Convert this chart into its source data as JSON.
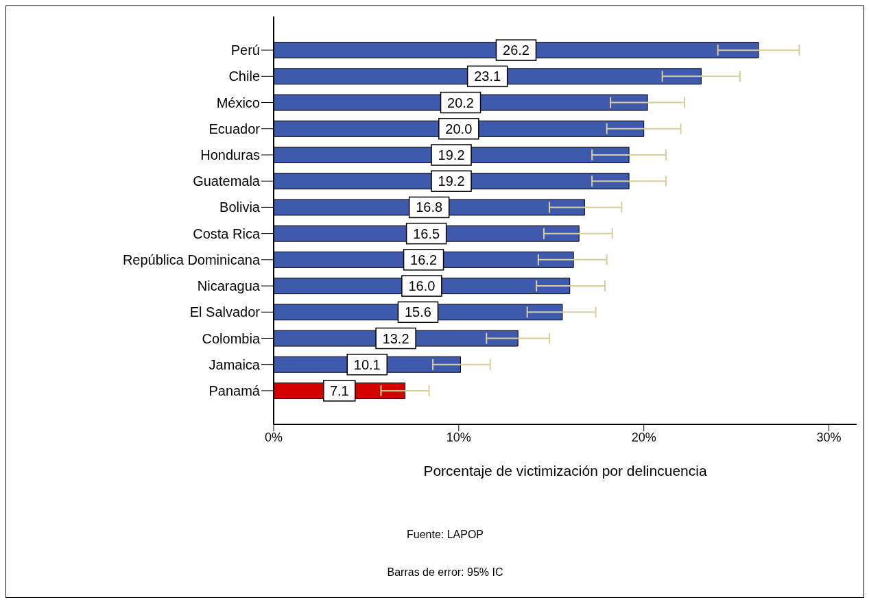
{
  "chart_data": {
    "type": "bar",
    "orientation": "horizontal",
    "categories": [
      "Perú",
      "Chile",
      "México",
      "Ecuador",
      "Honduras",
      "Guatemala",
      "Bolivia",
      "Costa Rica",
      "República Dominicana",
      "Nicaragua",
      "El Salvador",
      "Colombia",
      "Jamaica",
      "Panamá"
    ],
    "values": [
      26.2,
      23.1,
      20.2,
      20.0,
      19.2,
      19.2,
      16.8,
      16.5,
      16.2,
      16.0,
      15.6,
      13.2,
      10.1,
      7.1
    ],
    "errors": [
      [
        24.0,
        28.4
      ],
      [
        21.0,
        25.2
      ],
      [
        18.2,
        22.2
      ],
      [
        18.0,
        22.0
      ],
      [
        17.2,
        21.2
      ],
      [
        17.2,
        21.2
      ],
      [
        14.9,
        18.8
      ],
      [
        14.6,
        18.3
      ],
      [
        14.3,
        18.0
      ],
      [
        14.2,
        17.9
      ],
      [
        13.7,
        17.4
      ],
      [
        11.5,
        14.9
      ],
      [
        8.6,
        11.7
      ],
      [
        5.8,
        8.4
      ]
    ],
    "colors": [
      "#3f5aad",
      "#3f5aad",
      "#3f5aad",
      "#3f5aad",
      "#3f5aad",
      "#3f5aad",
      "#3f5aad",
      "#3f5aad",
      "#3f5aad",
      "#3f5aad",
      "#3f5aad",
      "#3f5aad",
      "#3f5aad",
      "#d40000"
    ],
    "xlim": [
      0,
      31.5
    ],
    "xticks": [
      {
        "value": 0,
        "label": "0%"
      },
      {
        "value": 10,
        "label": "10%"
      },
      {
        "value": 20,
        "label": "20%"
      },
      {
        "value": 30,
        "label": "30%"
      }
    ],
    "xlabel": "Porcentaje de victimización por delincuencia",
    "annotations": [
      "Fuente: LAPOP",
      "Barras de error: 95% IC"
    ],
    "value_labels": [
      "26.2",
      "23.1",
      "20.2",
      "20.0",
      "19.2",
      "19.2",
      "16.8",
      "16.5",
      "16.2",
      "16.0",
      "15.6",
      "13.2",
      "10.1",
      "7.1"
    ],
    "grid": false,
    "legend": false
  }
}
